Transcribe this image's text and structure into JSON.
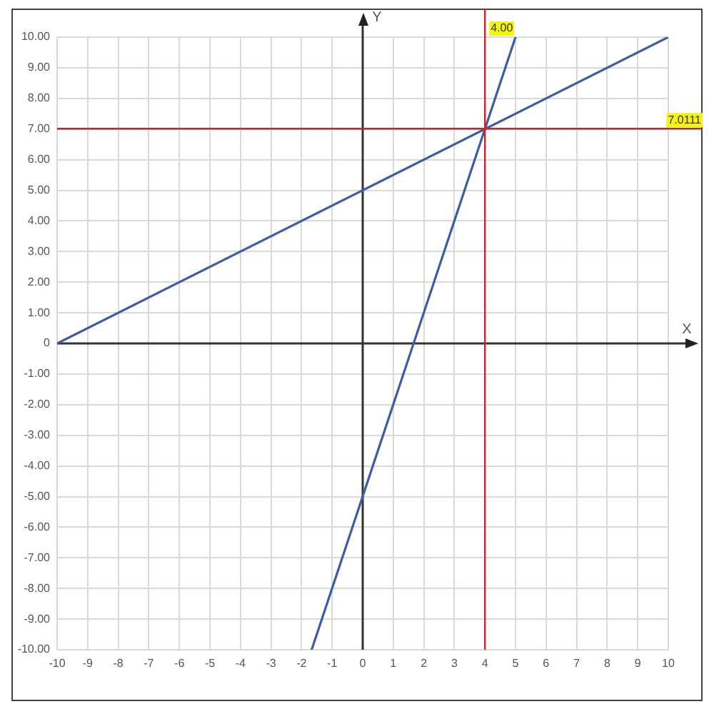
{
  "chart_data": {
    "type": "line",
    "xlabel": "X",
    "ylabel": "Y",
    "series": [
      {
        "color": "#3c5ba8",
        "x": [
          -10,
          10
        ],
        "values": [
          0,
          10
        ]
      },
      {
        "color": "#3c5ba8",
        "x": [
          -1.67,
          5
        ],
        "values": [
          -10,
          10
        ]
      }
    ],
    "xlim": [
      -10,
      10
    ],
    "ylim": [
      -10,
      10
    ],
    "xticks": [
      -10,
      -9,
      -8,
      -7,
      -6,
      -5,
      -4,
      -3,
      -2,
      -1,
      0,
      1,
      2,
      3,
      4,
      5,
      6,
      7,
      8,
      9,
      10
    ],
    "yticks": [
      {
        "value": -10,
        "label": "-10.00"
      },
      {
        "value": -9,
        "label": "-9.00"
      },
      {
        "value": -8,
        "label": "-8.00"
      },
      {
        "value": -7,
        "label": "-7.00"
      },
      {
        "value": -6,
        "label": "-6.00"
      },
      {
        "value": -5,
        "label": "-5.00"
      },
      {
        "value": -4,
        "label": "-4.00"
      },
      {
        "value": -3,
        "label": "-3.00"
      },
      {
        "value": -2,
        "label": "-2.00"
      },
      {
        "value": -1,
        "label": "-1.00"
      },
      0,
      {
        "value": 1,
        "label": "1.00"
      },
      {
        "value": 2,
        "label": "2.00"
      },
      {
        "value": 3,
        "label": "3.00"
      },
      {
        "value": 4,
        "label": "4.00"
      },
      {
        "value": 5,
        "label": "5.00"
      },
      {
        "value": 6,
        "label": "6.00"
      },
      {
        "value": 7,
        "label": "7.00"
      },
      {
        "value": 8,
        "label": "8.00"
      },
      {
        "value": 9,
        "label": "9.00"
      },
      {
        "value": 10,
        "label": "10.00"
      }
    ],
    "grid": true,
    "ref_lines": [
      {
        "axis": "x",
        "value": 4,
        "label": "4.00",
        "color": "#d42020"
      },
      {
        "axis": "y",
        "value": 7.0111,
        "label": "7.0111",
        "color": "#d42020"
      }
    ]
  }
}
